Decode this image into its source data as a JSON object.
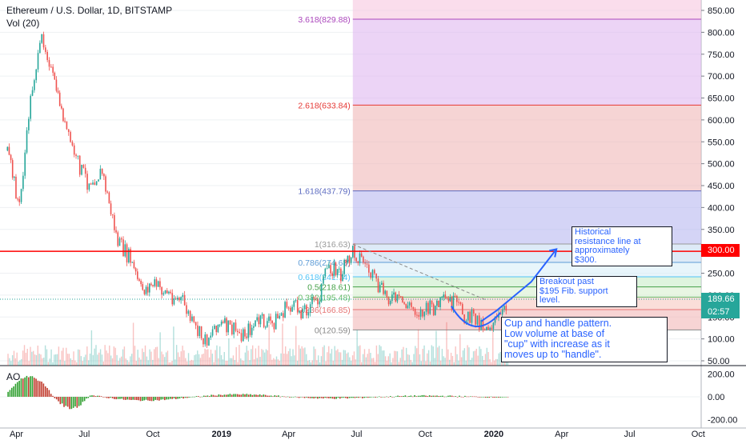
{
  "header": {
    "title": "Ethereum / U.S. Dollar, 1D, BITSTAMP",
    "volume_label": "Vol (20)",
    "ao_label": "AO"
  },
  "colors": {
    "up": "#26a69a",
    "down": "#ef5350",
    "resistance": "#ff0000",
    "annotation": "#2962ff",
    "ao_up": "#2e9e2e",
    "ao_down": "#c0392b"
  },
  "tags": {
    "resistance": "300.00",
    "last_price": "189.66",
    "countdown": "02:57"
  },
  "annotations": {
    "resistance": "Historical\nresistance line at\napproximately\n$300.",
    "breakout": "Breakout past\n$195 Fib. support\nlevel.",
    "cup": "Cup and handle pattern.\nLow volume at base of\n\"cup\" with increase as it\nmoves up to \"handle\"."
  },
  "chart_data": [
    {
      "type": "line",
      "series": [
        {
          "name": "",
          "x": [
            "2018-03-20",
            "2018-04-05",
            "2018-04-20",
            "2018-05-05",
            "2018-05-20",
            "2018-06-05",
            "2018-06-20",
            "2018-07-05",
            "2018-07-25",
            "2018-08-15",
            "2018-09-01",
            "2018-09-15",
            "2018-10-01",
            "2018-10-20",
            "2018-11-10",
            "2018-11-25",
            "2018-12-10",
            "2018-12-25",
            "2019-01-10",
            "2019-01-30",
            "2019-02-20",
            "2019-03-10",
            "2019-04-01",
            "2019-04-20",
            "2019-05-10",
            "2019-05-25",
            "2019-06-10",
            "2019-06-26",
            "2019-07-10",
            "2019-07-30",
            "2019-08-20",
            "2019-09-10",
            "2019-09-25",
            "2019-10-10",
            "2019-10-28",
            "2019-11-10",
            "2019-11-25",
            "2019-12-10",
            "2019-12-20",
            "2020-01-05",
            "2020-01-20"
          ],
          "y": [
            530,
            400,
            650,
            790,
            700,
            590,
            510,
            460,
            480,
            320,
            280,
            210,
            225,
            205,
            185,
            125,
            95,
            135,
            125,
            110,
            140,
            135,
            175,
            165,
            190,
            270,
            245,
            300,
            280,
            215,
            190,
            175,
            160,
            170,
            185,
            180,
            150,
            145,
            130,
            140,
            172
          ]
        }
      ],
      "x_ticks": [
        "Apr",
        "Jul",
        "Oct",
        "2019",
        "Apr",
        "Jul",
        "Oct",
        "2020",
        "Apr",
        "Jul",
        "Oct"
      ],
      "y_ticks": [
        "850.00",
        "800.00",
        "750.00",
        "700.00",
        "650.00",
        "600.00",
        "550.00",
        "500.00",
        "450.00",
        "400.00",
        "350.00",
        "300.00",
        "250.00",
        "200.00",
        "150.00",
        "100.00",
        "50.00"
      ],
      "ylim": [
        50,
        860
      ],
      "xlim": [
        "2018-03-10",
        "2020-10-05"
      ],
      "resistance_level": 300,
      "fib_levels": [
        {
          "label": "0(120.59)",
          "ratio": 0,
          "value": 120.59
        },
        {
          "label": "0.236(166.85)",
          "ratio": 0.236,
          "value": 166.85
        },
        {
          "label": "0.382(195.48)",
          "ratio": 0.382,
          "value": 195.48
        },
        {
          "label": "0.5(218.61)",
          "ratio": 0.5,
          "value": 218.61
        },
        {
          "label": "0.618(241.74)",
          "ratio": 0.618,
          "value": 241.74
        },
        {
          "label": "0.786(274.68)",
          "ratio": 0.786,
          "value": 274.68
        },
        {
          "label": "1(316.63)",
          "ratio": 1,
          "value": 316.63
        },
        {
          "label": "1.618(437.79)",
          "ratio": 1.618,
          "value": 437.79
        },
        {
          "label": "2.618(633.84)",
          "ratio": 2.618,
          "value": 633.84
        },
        {
          "label": "3.618(829.88)",
          "ratio": 3.618,
          "value": 829.88
        }
      ],
      "fib_start": "2019-06-26",
      "fib_colors": [
        "#f2b8b8",
        "#f6c8c0",
        "#d8f0d0",
        "#c8ecc8",
        "#d8eef8",
        "#c8dcf2",
        "#b8b8f0",
        "#f0b8b8",
        "#e0b8f0"
      ],
      "projection": {
        "x": [
          "2019-12-15",
          "2020-01-05",
          "2020-02-20",
          "2020-03-25"
        ],
        "y": [
          140,
          165,
          230,
          305
        ]
      }
    },
    {
      "type": "bar",
      "name": "volume",
      "ylim": [
        0,
        1
      ]
    },
    {
      "type": "bar",
      "name": "AO",
      "y_ticks": [
        "200.00",
        "0.00",
        "-200.00"
      ],
      "ylim": [
        -260,
        260
      ]
    }
  ]
}
